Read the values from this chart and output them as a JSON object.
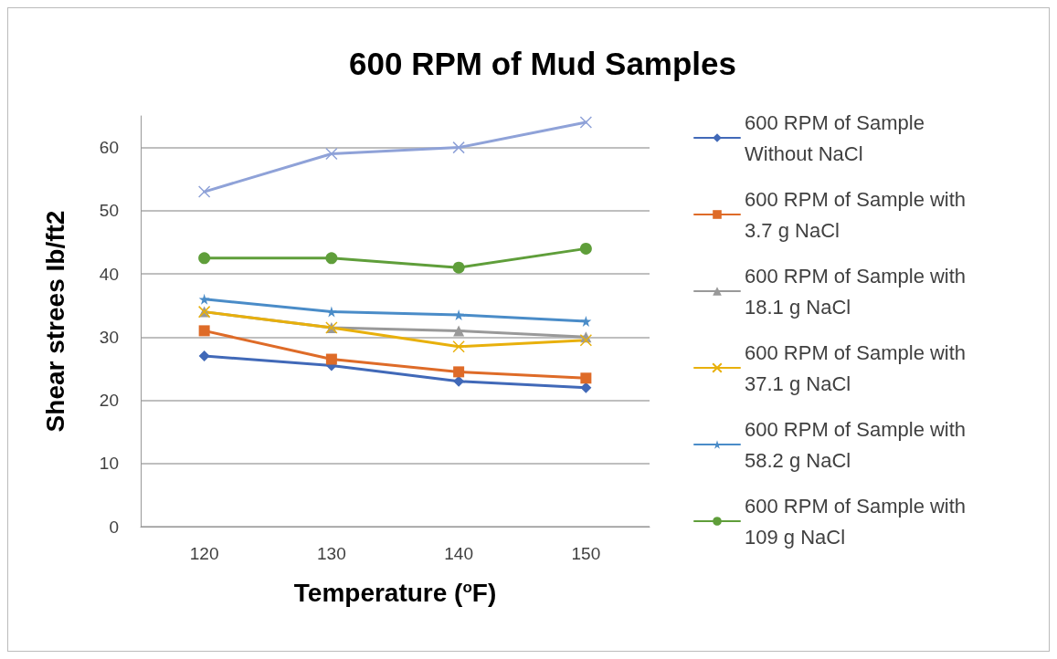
{
  "chart_data": {
    "type": "line",
    "title": "600 RPM of Mud Samples",
    "xlabel": "Temperature ($^{o}$F)",
    "ylabel": "Shear strees Ib/ft2",
    "categories": [
      "120",
      "130",
      "140",
      "150"
    ],
    "series": [
      {
        "name": "600 RPM of Sample Without NaCl",
        "color": "#4169b8",
        "marker": "diamond",
        "values": [
          27,
          25.5,
          23,
          22
        ]
      },
      {
        "name": "600 RPM of Sample with 3.7 g NaCl",
        "color": "#de6b28",
        "marker": "square",
        "values": [
          31,
          26.5,
          24.5,
          23.5
        ]
      },
      {
        "name": "600 RPM of Sample with 18.1 g NaCl",
        "color": "#999999",
        "marker": "triangle",
        "values": [
          34,
          31.5,
          31,
          30
        ]
      },
      {
        "name": "600 RPM of Sample with 37.1 g NaCl",
        "color": "#e8b00c",
        "marker": "cross",
        "values": [
          34,
          31.5,
          28.5,
          29.5
        ]
      },
      {
        "name": "600 RPM of Sample with 58.2 g NaCl",
        "color": "#4a8cc8",
        "marker": "star",
        "values": [
          36,
          34,
          33.5,
          32.5
        ]
      },
      {
        "name": "600 RPM of Sample with 109 g NaCl",
        "color": "#5f9e3a",
        "marker": "circle",
        "values": [
          42.5,
          42.5,
          41,
          44
        ]
      },
      {
        "color": "#8fa2d8",
        "marker": "cross",
        "values": [
          53,
          59,
          60,
          64
        ]
      }
    ],
    "ylim": [
      0,
      65
    ],
    "yticks": [
      0,
      10,
      20,
      30,
      40,
      50,
      60
    ],
    "grid": "y",
    "legend": "right"
  }
}
